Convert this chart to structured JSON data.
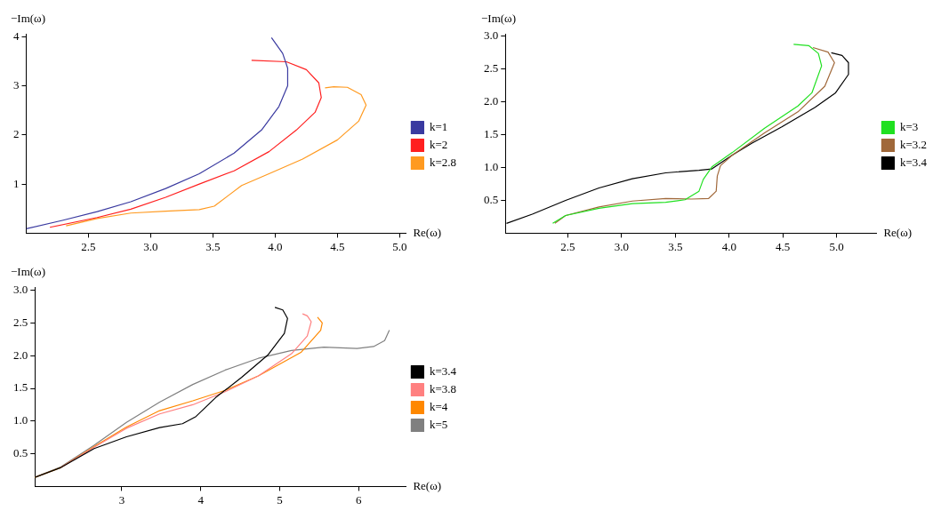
{
  "chart_data": [
    {
      "type": "line",
      "xlabel": "Re(ω)",
      "ylabel": "−Im(ω)",
      "xlim": [
        2,
        5.05
      ],
      "ylim": [
        0,
        4.06
      ],
      "xticks": [
        2.5,
        {
          "value": 3,
          "label": "3.0"
        },
        3.5,
        {
          "value": 4,
          "label": "4.0"
        },
        4.5,
        {
          "value": 5,
          "label": "5.0"
        }
      ],
      "yticks": [
        1,
        2,
        3,
        4
      ],
      "grid": false,
      "legend": "right",
      "marker": "none",
      "series": [
        {
          "name": "k=1",
          "color": "#3a3aa0",
          "x": [
            2.0,
            2.29,
            2.57,
            2.84,
            3.12,
            3.39,
            3.67,
            3.89,
            4.03,
            4.1,
            4.1,
            4.06,
            3.97
          ],
          "values": [
            0.09,
            0.26,
            0.44,
            0.64,
            0.91,
            1.21,
            1.63,
            2.1,
            2.58,
            3.0,
            3.36,
            3.66,
            3.98
          ]
        },
        {
          "name": "k=2",
          "color": "#ff2020",
          "x": [
            2.19,
            2.57,
            2.84,
            3.12,
            3.39,
            3.67,
            3.95,
            4.17,
            4.32,
            4.37,
            4.35,
            4.25,
            4.09,
            3.81
          ],
          "values": [
            0.12,
            0.32,
            0.49,
            0.73,
            1.0,
            1.27,
            1.66,
            2.1,
            2.46,
            2.76,
            3.06,
            3.33,
            3.49,
            3.52
          ]
        },
        {
          "name": "k=2.8",
          "color": "#ff9a20",
          "x": [
            2.32,
            2.57,
            2.84,
            3.12,
            3.39,
            3.51,
            3.62,
            3.73,
            3.95,
            4.22,
            4.5,
            4.67,
            4.73,
            4.69,
            4.58,
            4.47,
            4.4
          ],
          "values": [
            0.15,
            0.3,
            0.41,
            0.45,
            0.48,
            0.55,
            0.76,
            0.97,
            1.21,
            1.51,
            1.9,
            2.28,
            2.61,
            2.82,
            2.97,
            2.98,
            2.96
          ]
        }
      ]
    },
    {
      "type": "line",
      "xlabel": "Re(ω)",
      "ylabel": "−Im(ω)",
      "xlim": [
        1.92,
        5.37
      ],
      "ylim": [
        0,
        3.04
      ],
      "xticks": [
        2.5,
        {
          "value": 3,
          "label": "3.0"
        },
        3.5,
        {
          "value": 4,
          "label": "4.0"
        },
        4.5,
        {
          "value": 5,
          "label": "5.0"
        }
      ],
      "yticks": [
        0.5,
        {
          "value": 1,
          "label": "1.0"
        },
        1.5,
        {
          "value": 2,
          "label": "2.0"
        },
        2.5,
        {
          "value": 3,
          "label": "3.0"
        }
      ],
      "grid": false,
      "legend": "right",
      "marker": "none",
      "series": [
        {
          "name": "k=3",
          "color": "#20e020",
          "x": [
            2.36,
            2.48,
            2.79,
            3.1,
            3.41,
            3.59,
            3.72,
            3.76,
            3.84,
            4.03,
            4.33,
            4.64,
            4.77,
            4.86,
            4.83,
            4.74,
            4.6
          ],
          "values": [
            0.15,
            0.27,
            0.38,
            0.45,
            0.47,
            0.51,
            0.64,
            0.82,
            1.01,
            1.23,
            1.6,
            1.94,
            2.14,
            2.55,
            2.74,
            2.86,
            2.88
          ]
        },
        {
          "name": "k=3.2",
          "color": "#a0683a",
          "x": [
            2.38,
            2.48,
            2.79,
            3.1,
            3.41,
            3.65,
            3.81,
            3.88,
            3.89,
            3.92,
            4.03,
            4.33,
            4.64,
            4.89,
            4.98,
            4.92,
            4.78
          ],
          "values": [
            0.15,
            0.27,
            0.4,
            0.49,
            0.53,
            0.52,
            0.53,
            0.64,
            0.87,
            1.03,
            1.19,
            1.53,
            1.85,
            2.24,
            2.6,
            2.76,
            2.83
          ]
        },
        {
          "name": "k=3.4",
          "color": "#000000",
          "x": [
            1.93,
            2.17,
            2.48,
            2.79,
            3.1,
            3.41,
            3.72,
            3.84,
            4.03,
            4.21,
            4.49,
            4.8,
            4.99,
            5.11,
            5.11,
            5.05,
            4.95
          ],
          "values": [
            0.15,
            0.29,
            0.5,
            0.69,
            0.83,
            0.92,
            0.96,
            0.98,
            1.19,
            1.37,
            1.62,
            1.92,
            2.14,
            2.42,
            2.6,
            2.71,
            2.75
          ]
        }
      ]
    },
    {
      "type": "line",
      "xlabel": "Re(ω)",
      "ylabel": "−Im(ω)",
      "xlim": [
        1.9,
        6.6
      ],
      "ylim": [
        0,
        3.05
      ],
      "xticks": [
        3,
        4,
        5,
        6
      ],
      "yticks": [
        0.5,
        {
          "value": 1,
          "label": "1.0"
        },
        1.5,
        {
          "value": 2,
          "label": "2.0"
        },
        2.5,
        {
          "value": 3,
          "label": "3.0"
        }
      ],
      "grid": false,
      "legend": "right",
      "marker": "none",
      "series": [
        {
          "name": "k=3.4",
          "color": "#000000",
          "x": [
            1.9,
            2.23,
            2.65,
            3.06,
            3.48,
            3.77,
            3.94,
            4.19,
            4.52,
            4.85,
            5.06,
            5.1,
            5.04,
            4.94
          ],
          "values": [
            0.14,
            0.29,
            0.58,
            0.76,
            0.9,
            0.96,
            1.07,
            1.36,
            1.67,
            2.01,
            2.34,
            2.57,
            2.7,
            2.74
          ]
        },
        {
          "name": "k=3.8",
          "color": "#ff8080",
          "x": [
            2.23,
            2.65,
            3.06,
            3.48,
            3.9,
            4.31,
            4.73,
            5.15,
            5.35,
            5.4,
            5.35,
            5.29
          ],
          "values": [
            0.29,
            0.6,
            0.89,
            1.11,
            1.25,
            1.45,
            1.69,
            2.03,
            2.3,
            2.52,
            2.61,
            2.64
          ]
        },
        {
          "name": "k=4",
          "color": "#ff8800",
          "x": [
            1.9,
            2.23,
            2.65,
            3.06,
            3.48,
            3.9,
            4.31,
            4.73,
            5.27,
            5.52,
            5.54,
            5.48
          ],
          "values": [
            0.14,
            0.29,
            0.61,
            0.91,
            1.16,
            1.31,
            1.47,
            1.69,
            2.05,
            2.39,
            2.5,
            2.59
          ]
        },
        {
          "name": "k=5",
          "color": "#808080",
          "x": [
            1.9,
            2.23,
            2.65,
            3.06,
            3.48,
            3.9,
            4.31,
            4.73,
            5.15,
            5.56,
            5.98,
            6.19,
            6.33,
            6.39
          ],
          "values": [
            0.14,
            0.3,
            0.63,
            0.98,
            1.29,
            1.56,
            1.78,
            1.96,
            2.08,
            2.13,
            2.11,
            2.14,
            2.23,
            2.39
          ]
        }
      ]
    }
  ]
}
